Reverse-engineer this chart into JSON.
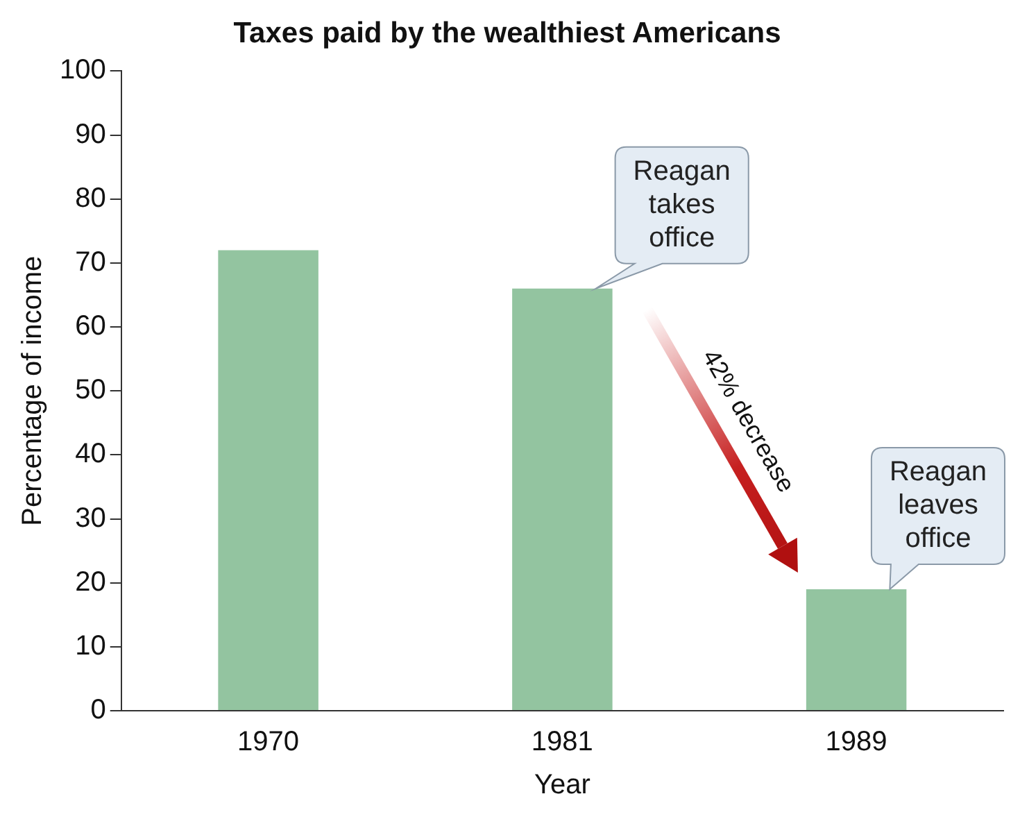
{
  "chart_data": {
    "type": "bar",
    "title": "Taxes paid by the wealthiest Americans",
    "xlabel": "Year",
    "ylabel": "Percentage of income",
    "categories": [
      "1970",
      "1981",
      "1989"
    ],
    "values": [
      72,
      66,
      19
    ],
    "color": "#93c4a0",
    "ylim": [
      0,
      100
    ],
    "yticks": [
      0,
      10,
      20,
      30,
      40,
      50,
      60,
      70,
      80,
      90,
      100
    ],
    "grid": false,
    "annotations": [
      {
        "text": "Reagan takes office",
        "x": "1981",
        "y": 66
      },
      "42% decrease",
      {
        "text": "Reagan leaves office",
        "x": "1989",
        "y": 19
      }
    ]
  }
}
